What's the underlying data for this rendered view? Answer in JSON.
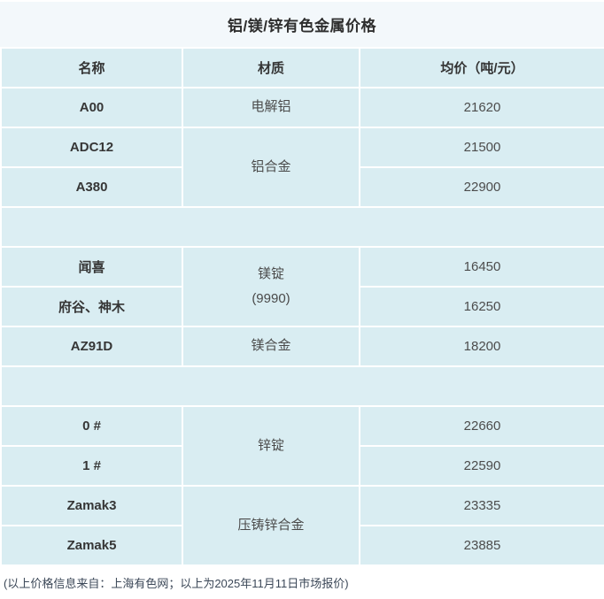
{
  "title": "铝/镁/锌有色金属价格",
  "table": {
    "headers": [
      "名称",
      "材质",
      "均价（吨/元）"
    ],
    "sections": [
      {
        "group": "aluminum",
        "rows": [
          {
            "name": "A00",
            "material": "电解铝",
            "price": "21620"
          },
          {
            "name": "ADC12",
            "material": "铝合金",
            "price": "21500"
          },
          {
            "name": "A380",
            "price": "22900"
          }
        ]
      },
      {
        "group": "magnesium",
        "rows": [
          {
            "name": "闻喜",
            "material": "镁锭\n(9990)",
            "price": "16450"
          },
          {
            "name": "府谷、神木",
            "price": "16250"
          },
          {
            "name": "AZ91D",
            "material": "镁合金",
            "price": "18200"
          }
        ]
      },
      {
        "group": "zinc",
        "rows": [
          {
            "name": "0 #",
            "material": "锌锭",
            "price": "22660"
          },
          {
            "name": "1 #",
            "price": "22590"
          },
          {
            "name": "Zamak3",
            "material": "压铸锌合金",
            "price": "23335"
          },
          {
            "name": "Zamak5",
            "price": "23885"
          }
        ]
      }
    ]
  },
  "footer": "(以上价格信息来自：上海有色网；以上为2025年11月11日市场报价)",
  "colors": {
    "cell_background": "#d9edf2",
    "title_band_background": "#f3f8fb",
    "gridline": "#ffffff",
    "name_text": "#363636",
    "value_text": "#4c4c4c",
    "footer_text": "#3c4858"
  }
}
